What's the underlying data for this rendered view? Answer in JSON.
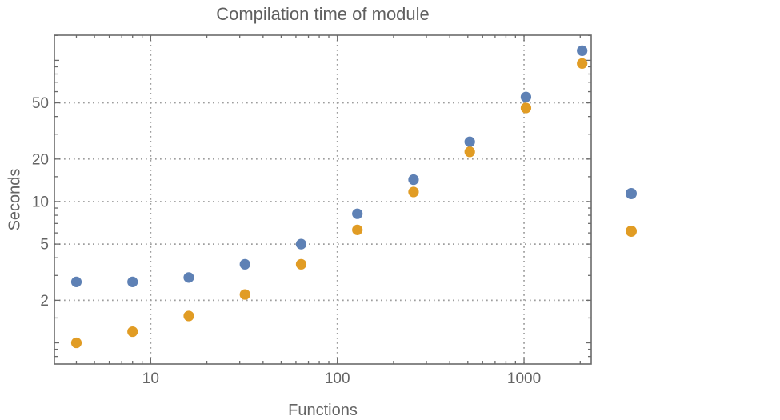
{
  "chart_data": {
    "type": "scatter",
    "title": "Compilation time of module",
    "xlabel": "Functions",
    "ylabel": "Seconds",
    "x_scale": "log",
    "y_scale": "log",
    "xlim": [
      3.05,
      2290
    ],
    "ylim": [
      0.708,
      150.6
    ],
    "grid": {
      "style": "dotted",
      "on": "major-ticks-only"
    },
    "x": [
      4,
      8,
      16,
      32,
      64,
      128,
      256,
      512,
      1024,
      2048
    ],
    "series": [
      {
        "name": "series-1",
        "color": "#5E81B5",
        "values": [
          2.7,
          2.7,
          2.9,
          3.6,
          5.0,
          8.2,
          14.3,
          26.5,
          55,
          117
        ]
      },
      {
        "name": "series-2",
        "color": "#E19C24",
        "values": [
          1.0,
          1.2,
          1.55,
          2.2,
          3.6,
          6.3,
          11.7,
          22.5,
          46,
          95
        ]
      }
    ],
    "x_ticks": {
      "major": [
        {
          "v": 10,
          "label": "10"
        },
        {
          "v": 100,
          "label": "100"
        },
        {
          "v": 1000,
          "label": "1000"
        }
      ],
      "minor": [
        4,
        5,
        6,
        7,
        8,
        9,
        20,
        30,
        40,
        50,
        60,
        70,
        80,
        90,
        200,
        300,
        400,
        500,
        600,
        700,
        800,
        900,
        2000
      ]
    },
    "y_ticks": {
      "major": [
        {
          "v": 2,
          "label": "2"
        },
        {
          "v": 5,
          "label": "5"
        },
        {
          "v": 10,
          "label": "10"
        },
        {
          "v": 20,
          "label": "20"
        },
        {
          "v": 50,
          "label": "50"
        }
      ],
      "medium": [
        1,
        100
      ],
      "minor": [
        0.8,
        0.9,
        1.5,
        3,
        4,
        6,
        7,
        8,
        9,
        15,
        30,
        40,
        60,
        70,
        80,
        90,
        150
      ]
    },
    "legend": {
      "position": "outside-right",
      "entries": [
        {
          "series": "series-1",
          "color": "#5E81B5",
          "label": ""
        },
        {
          "series": "series-2",
          "color": "#E19C24",
          "label": ""
        }
      ]
    }
  },
  "colors": {
    "background": "#ffffff",
    "frame": "#6a6a6a",
    "grid": "#9d9d9d",
    "tick_text": "#646464",
    "title_text": "#5f5f5f"
  }
}
